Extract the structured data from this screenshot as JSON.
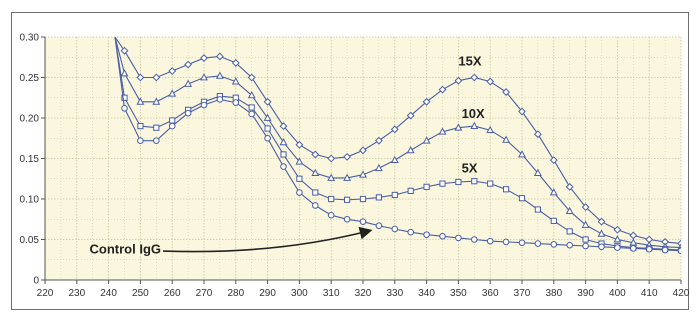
{
  "chart_data": {
    "type": "line",
    "title": "",
    "xlabel": "",
    "ylabel": "",
    "xlim": [
      220,
      420
    ],
    "ylim": [
      0,
      0.3
    ],
    "x_ticks": [
      220,
      230,
      240,
      250,
      260,
      270,
      280,
      290,
      300,
      310,
      320,
      330,
      340,
      350,
      360,
      370,
      380,
      390,
      400,
      410,
      420
    ],
    "y_ticks": [
      "0",
      "0.05",
      "0.10",
      "0.15",
      "0.20",
      "0.25",
      "0.30"
    ],
    "grid": "dotted, major and minor",
    "legend": "none",
    "colors": {
      "plot_background": "#fbf7de",
      "line": "#4a5fa5",
      "grid": "#c9c3a0",
      "axis": "#555555"
    },
    "series": [
      {
        "name": "15X",
        "marker": "diamond",
        "label_at": [
          350,
          0.265
        ],
        "x": [
          242,
          245,
          250,
          255,
          260,
          265,
          270,
          275,
          280,
          285,
          290,
          295,
          300,
          305,
          310,
          315,
          320,
          325,
          330,
          335,
          340,
          345,
          350,
          355,
          360,
          365,
          370,
          375,
          380,
          385,
          390,
          395,
          400,
          405,
          410,
          415,
          420
        ],
        "y": [
          0.3,
          0.283,
          0.25,
          0.25,
          0.258,
          0.266,
          0.274,
          0.276,
          0.268,
          0.25,
          0.22,
          0.19,
          0.167,
          0.155,
          0.15,
          0.152,
          0.16,
          0.172,
          0.186,
          0.203,
          0.22,
          0.235,
          0.246,
          0.25,
          0.245,
          0.232,
          0.208,
          0.18,
          0.148,
          0.115,
          0.09,
          0.072,
          0.062,
          0.055,
          0.05,
          0.047,
          0.045
        ]
      },
      {
        "name": "10X",
        "marker": "triangle",
        "label_at": [
          351,
          0.2
        ],
        "x": [
          242,
          245,
          250,
          255,
          260,
          265,
          270,
          275,
          280,
          285,
          290,
          295,
          300,
          305,
          310,
          315,
          320,
          325,
          330,
          335,
          340,
          345,
          350,
          355,
          360,
          365,
          370,
          375,
          380,
          385,
          390,
          395,
          400,
          405,
          410,
          415,
          420
        ],
        "y": [
          0.3,
          0.255,
          0.22,
          0.22,
          0.23,
          0.242,
          0.25,
          0.252,
          0.245,
          0.228,
          0.2,
          0.17,
          0.146,
          0.132,
          0.126,
          0.126,
          0.13,
          0.138,
          0.148,
          0.16,
          0.172,
          0.183,
          0.188,
          0.19,
          0.185,
          0.173,
          0.155,
          0.132,
          0.108,
          0.085,
          0.068,
          0.057,
          0.05,
          0.046,
          0.043,
          0.041,
          0.04
        ]
      },
      {
        "name": "5X",
        "marker": "square",
        "label_at": [
          351,
          0.133
        ],
        "x": [
          242,
          245,
          250,
          255,
          260,
          265,
          270,
          275,
          280,
          285,
          290,
          295,
          300,
          305,
          310,
          315,
          320,
          325,
          330,
          335,
          340,
          345,
          350,
          355,
          360,
          365,
          370,
          375,
          380,
          385,
          390,
          395,
          400,
          405,
          410,
          415,
          420
        ],
        "y": [
          0.3,
          0.225,
          0.19,
          0.188,
          0.197,
          0.21,
          0.22,
          0.227,
          0.225,
          0.213,
          0.187,
          0.155,
          0.125,
          0.108,
          0.1,
          0.099,
          0.1,
          0.102,
          0.105,
          0.11,
          0.115,
          0.119,
          0.121,
          0.122,
          0.119,
          0.112,
          0.101,
          0.087,
          0.073,
          0.06,
          0.05,
          0.045,
          0.042,
          0.04,
          0.039,
          0.038,
          0.037
        ]
      },
      {
        "name": "Control IgG",
        "marker": "circle",
        "label_at": [
          234,
          0.033
        ],
        "arrow_to": [
          322,
          0.067
        ],
        "x": [
          242,
          245,
          250,
          255,
          260,
          265,
          270,
          275,
          280,
          285,
          290,
          295,
          300,
          305,
          310,
          315,
          320,
          325,
          330,
          335,
          340,
          345,
          350,
          355,
          360,
          365,
          370,
          375,
          380,
          385,
          390,
          395,
          400,
          405,
          410,
          415,
          420
        ],
        "y": [
          0.3,
          0.212,
          0.172,
          0.172,
          0.19,
          0.206,
          0.216,
          0.223,
          0.219,
          0.205,
          0.175,
          0.14,
          0.108,
          0.092,
          0.08,
          0.075,
          0.072,
          0.067,
          0.063,
          0.059,
          0.056,
          0.054,
          0.052,
          0.05,
          0.048,
          0.047,
          0.046,
          0.045,
          0.044,
          0.043,
          0.042,
          0.041,
          0.04,
          0.039,
          0.038,
          0.037,
          0.036
        ]
      }
    ]
  }
}
